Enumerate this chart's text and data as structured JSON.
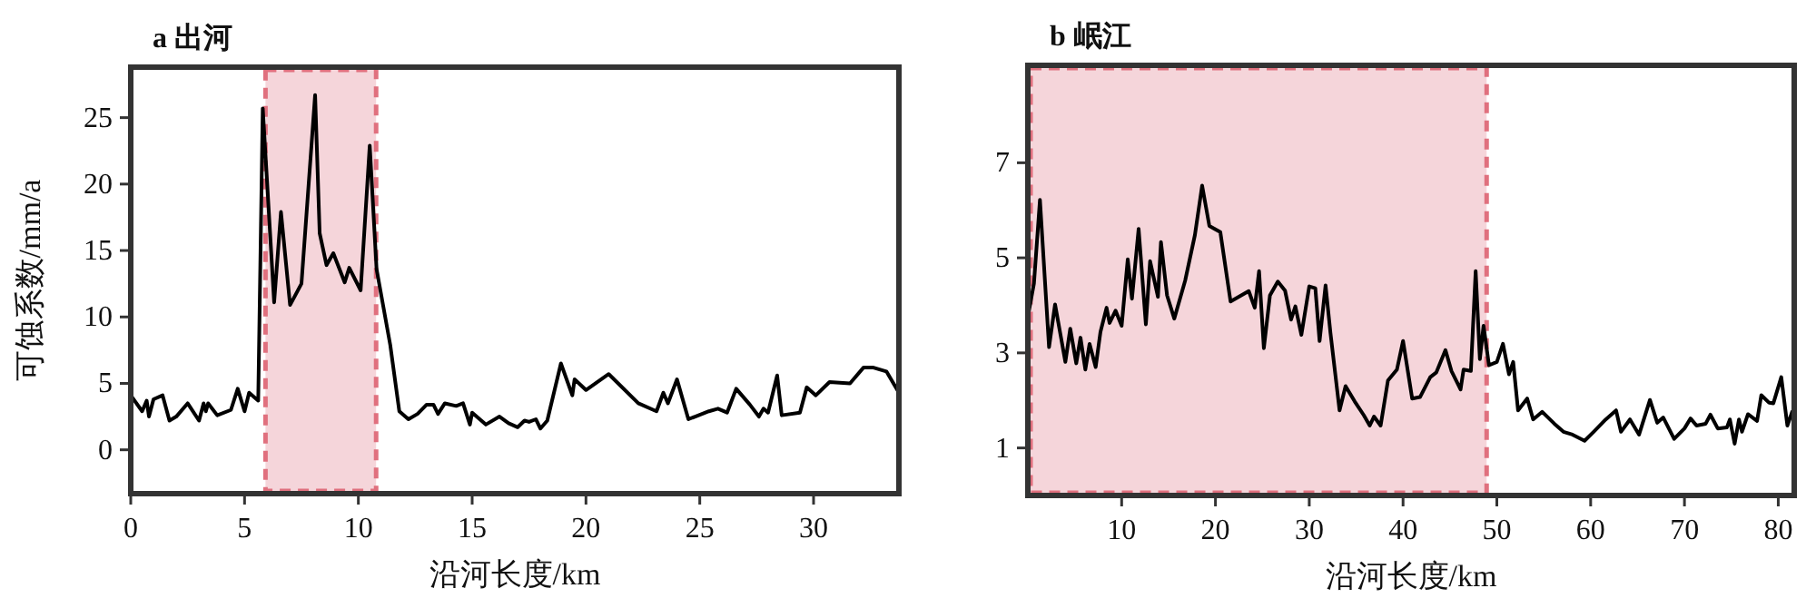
{
  "chart_data": [
    {
      "type": "line",
      "title": "a 出河",
      "xlabel": "沿河长度/km",
      "ylabel": "可蚀系数/mm/a",
      "xlim": [
        0,
        33.75
      ],
      "ylim": [
        -3.3,
        28.8
      ],
      "xticks": [
        0,
        5,
        10,
        15,
        20,
        25,
        30
      ],
      "yticks": [
        0,
        5,
        10,
        15,
        20,
        25
      ],
      "grid": false,
      "marker": "none",
      "line_style": "solid",
      "bands": [
        {
          "axis": "x",
          "from": 5.8,
          "to": 10.9,
          "color": "#f5d5da"
        }
      ],
      "series": [
        {
          "color": "#000000",
          "x": [
            0,
            0.5,
            0.7,
            0.8,
            1.0,
            1.4,
            1.7,
            2.0,
            2.5,
            3.0,
            3.2,
            3.3,
            3.4,
            3.8,
            4.4,
            4.7,
            5.0,
            5.2,
            5.6,
            5.8,
            6.3,
            6.6,
            7.0,
            7.5,
            8.1,
            8.3,
            8.6,
            8.9,
            9.4,
            9.6,
            10.1,
            10.5,
            10.8,
            11.4,
            11.8,
            12.2,
            12.6,
            13.0,
            13.3,
            13.5,
            13.8,
            14.3,
            14.6,
            14.9,
            15.0,
            15.6,
            16.2,
            16.6,
            17.0,
            17.3,
            17.5,
            17.8,
            18.0,
            18.3,
            18.9,
            19.4,
            19.5,
            20.0,
            21.0,
            22.3,
            23.1,
            23.4,
            23.6,
            24.0,
            24.5,
            24.8,
            25.4,
            25.8,
            26.2,
            26.6,
            27.2,
            27.6,
            27.8,
            28.0,
            28.4,
            28.6,
            29.4,
            29.7,
            30.1,
            30.7,
            31.6,
            32.2,
            32.6,
            33.2,
            33.75
          ],
          "values": [
            4.1,
            2.9,
            3.7,
            2.5,
            3.8,
            4.1,
            2.2,
            2.5,
            3.5,
            2.2,
            3.5,
            2.9,
            3.5,
            2.6,
            3.0,
            4.6,
            2.9,
            4.3,
            3.7,
            25.7,
            11.1,
            17.9,
            10.9,
            12.5,
            26.7,
            16.3,
            13.9,
            14.8,
            12.6,
            13.7,
            12.0,
            22.9,
            13.6,
            7.9,
            2.9,
            2.3,
            2.7,
            3.4,
            3.4,
            2.7,
            3.5,
            3.3,
            3.5,
            1.9,
            2.8,
            1.9,
            2.5,
            2.0,
            1.7,
            2.2,
            2.1,
            2.3,
            1.6,
            2.2,
            6.5,
            4.1,
            5.3,
            4.5,
            5.7,
            3.5,
            2.9,
            4.3,
            3.5,
            5.3,
            2.3,
            2.5,
            2.9,
            3.1,
            2.8,
            4.6,
            3.4,
            2.5,
            3.1,
            2.8,
            5.6,
            2.6,
            2.8,
            4.7,
            4.1,
            5.1,
            5.0,
            6.2,
            6.2,
            5.9,
            4.3
          ]
        }
      ]
    },
    {
      "type": "line",
      "title": "b 岷江",
      "xlabel": "沿河长度/km",
      "xlim": [
        0,
        81.7
      ],
      "ylim": [
        0,
        9.05
      ],
      "xticks": [
        10,
        20,
        30,
        40,
        50,
        60,
        70,
        80
      ],
      "yticks": [
        1,
        3,
        5,
        7
      ],
      "grid": false,
      "marker": "none",
      "line_style": "solid",
      "bands": [
        {
          "axis": "x",
          "from": 0,
          "to": 49.2,
          "color": "#f5d5da"
        }
      ],
      "series": [
        {
          "color": "#000000",
          "x": [
            0,
            0.65,
            1.29,
            2.26,
            2.9,
            4.0,
            4.52,
            5.16,
            5.61,
            6.13,
            6.58,
            7.23,
            7.74,
            8.39,
            8.71,
            9.35,
            10.0,
            10.65,
            11.1,
            11.81,
            12.58,
            13.03,
            13.87,
            14.19,
            14.84,
            15.61,
            16.77,
            17.81,
            18.58,
            19.35,
            20.52,
            21.61,
            23.55,
            24.19,
            24.65,
            25.16,
            25.81,
            26.65,
            27.42,
            28.06,
            28.52,
            29.16,
            30.0,
            30.65,
            31.1,
            31.74,
            32.26,
            33.23,
            33.87,
            34.84,
            35.81,
            36.45,
            36.9,
            37.61,
            38.39,
            39.35,
            40.0,
            40.97,
            41.81,
            42.9,
            43.55,
            44.52,
            45.16,
            46.13,
            46.45,
            47.23,
            47.74,
            48.19,
            48.58,
            49.16,
            50.0,
            50.65,
            51.29,
            51.74,
            52.26,
            53.23,
            53.87,
            54.84,
            56.13,
            57.1,
            58.06,
            59.35,
            60.32,
            61.61,
            62.71,
            63.23,
            64.19,
            65.16,
            66.32,
            67.1,
            67.74,
            68.9,
            70.0,
            70.65,
            71.29,
            72.26,
            72.77,
            73.55,
            74.52,
            74.84,
            75.35,
            75.81,
            76.13,
            76.77,
            77.74,
            78.19,
            79.03,
            79.48,
            80.32,
            80.97,
            81.48
          ],
          "values": [
            3.76,
            4.46,
            6.22,
            3.12,
            4.02,
            2.81,
            3.51,
            2.78,
            3.32,
            2.65,
            3.19,
            2.7,
            3.44,
            3.95,
            3.63,
            3.89,
            3.57,
            4.97,
            4.14,
            5.61,
            3.6,
            4.93,
            4.18,
            5.33,
            4.21,
            3.72,
            4.52,
            5.48,
            6.52,
            5.67,
            5.54,
            4.08,
            4.3,
            3.95,
            4.72,
            3.1,
            4.21,
            4.5,
            4.31,
            3.7,
            3.98,
            3.38,
            4.4,
            4.36,
            3.25,
            4.42,
            3.42,
            1.79,
            2.3,
            1.98,
            1.69,
            1.47,
            1.66,
            1.47,
            2.42,
            2.65,
            3.25,
            2.04,
            2.07,
            2.49,
            2.59,
            3.06,
            2.62,
            2.23,
            2.65,
            2.62,
            4.72,
            2.87,
            3.57,
            2.74,
            2.81,
            3.19,
            2.55,
            2.81,
            1.79,
            2.04,
            1.6,
            1.76,
            1.51,
            1.34,
            1.28,
            1.15,
            1.34,
            1.6,
            1.79,
            1.34,
            1.6,
            1.28,
            2.01,
            1.53,
            1.64,
            1.19,
            1.41,
            1.62,
            1.47,
            1.51,
            1.7,
            1.41,
            1.43,
            1.6,
            1.09,
            1.6,
            1.34,
            1.71,
            1.57,
            2.11,
            1.95,
            1.94,
            2.49,
            1.47,
            1.76
          ]
        }
      ]
    }
  ]
}
